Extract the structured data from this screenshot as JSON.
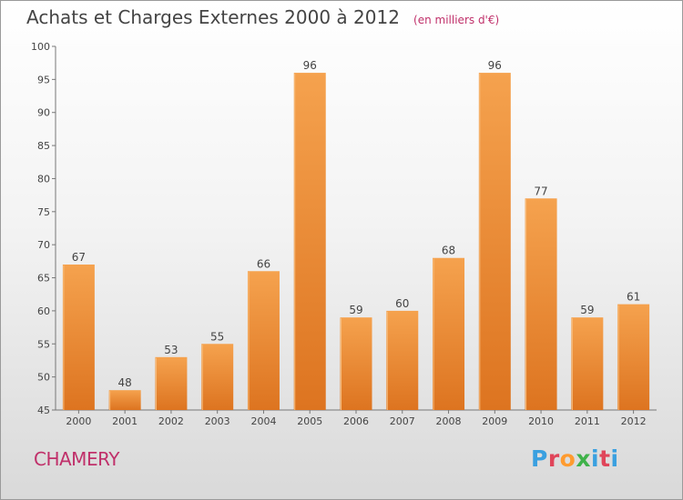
{
  "header": {
    "title": "Achats et Charges Externes 2000 à 2012",
    "unit": "(en milliers d'€)"
  },
  "footer": {
    "place": "CHAMERY",
    "logo": "Proxiti"
  },
  "colors": {
    "bar_light": "#f5a24e",
    "bar_dark": "#dd7420",
    "title": "#444444",
    "accent": "#c0306a"
  },
  "chart_data": {
    "type": "bar",
    "title": "Achats et Charges Externes 2000 à 2012",
    "subtitle": "(en milliers d'€)",
    "xlabel": "",
    "ylabel": "",
    "categories": [
      "2000",
      "2001",
      "2002",
      "2003",
      "2004",
      "2005",
      "2006",
      "2007",
      "2008",
      "2009",
      "2010",
      "2011",
      "2012"
    ],
    "values": [
      67,
      48,
      53,
      55,
      66,
      96,
      59,
      60,
      68,
      96,
      77,
      59,
      61
    ],
    "ylim": [
      45,
      100
    ],
    "yticks": [
      45,
      50,
      55,
      60,
      65,
      70,
      75,
      80,
      85,
      90,
      95,
      100
    ],
    "grid": false,
    "legend": "none"
  }
}
